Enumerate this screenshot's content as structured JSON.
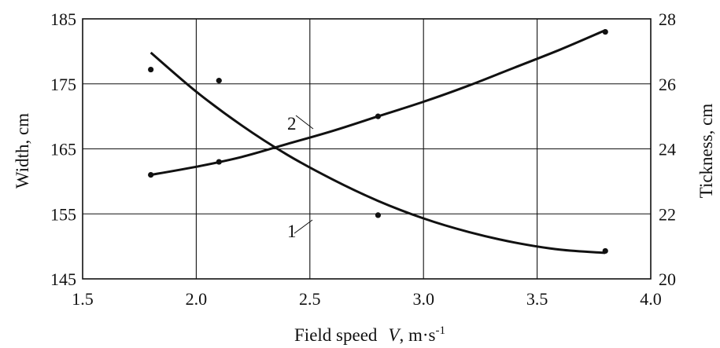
{
  "chart_data": {
    "type": "scatter",
    "title": "",
    "xlabel": {
      "main": "Field speed",
      "var": "V",
      "unit": ", m·s",
      "unit_exp": "-1"
    },
    "ylabel_left": "Width, cm",
    "ylabel_right": "Tickness, cm",
    "x_ticks": [
      "1.5",
      "2.0",
      "2.5",
      "3.0",
      "3.5",
      "4.0"
    ],
    "y_left_ticks": [
      "145",
      "155",
      "165",
      "175",
      "185"
    ],
    "y_right_ticks": [
      "20",
      "22",
      "24",
      "26",
      "28"
    ],
    "xlim": [
      1.5,
      4.0
    ],
    "ylim_left": [
      145,
      185
    ],
    "ylim_right": [
      20,
      28
    ],
    "x_tick_values": [
      1.5,
      2.0,
      2.5,
      3.0,
      3.5,
      4.0
    ],
    "y_left_tick_values": [
      145,
      155,
      165,
      175,
      185
    ],
    "y_right_tick_values": [
      20,
      22,
      24,
      26,
      28
    ],
    "grid": true,
    "series": [
      {
        "label": "1",
        "axis": "left",
        "points": [
          [
            1.8,
            177.2
          ],
          [
            2.1,
            175.5
          ],
          [
            2.8,
            154.8
          ],
          [
            3.8,
            149.3
          ]
        ],
        "fit_x": [
          1.8,
          2.0,
          2.2,
          2.4,
          2.6,
          2.8,
          3.0,
          3.2,
          3.4,
          3.6,
          3.8
        ],
        "fit_y": [
          179.8,
          173.8,
          168.6,
          164.1,
          160.3,
          157.0,
          154.3,
          152.2,
          150.6,
          149.5,
          149.0
        ]
      },
      {
        "label": "2",
        "axis": "right",
        "points": [
          [
            1.8,
            23.2
          ],
          [
            2.1,
            23.6
          ],
          [
            2.8,
            25.0
          ],
          [
            3.8,
            27.6
          ]
        ],
        "fit_x": [
          1.8,
          2.0,
          2.2,
          2.4,
          2.6,
          2.8,
          3.0,
          3.2,
          3.4,
          3.6,
          3.8
        ],
        "fit_y": [
          23.2,
          23.45,
          23.75,
          24.15,
          24.55,
          25.0,
          25.45,
          25.95,
          26.5,
          27.05,
          27.65
        ]
      }
    ]
  },
  "colors": {
    "line": "#111111",
    "background": "#ffffff"
  }
}
